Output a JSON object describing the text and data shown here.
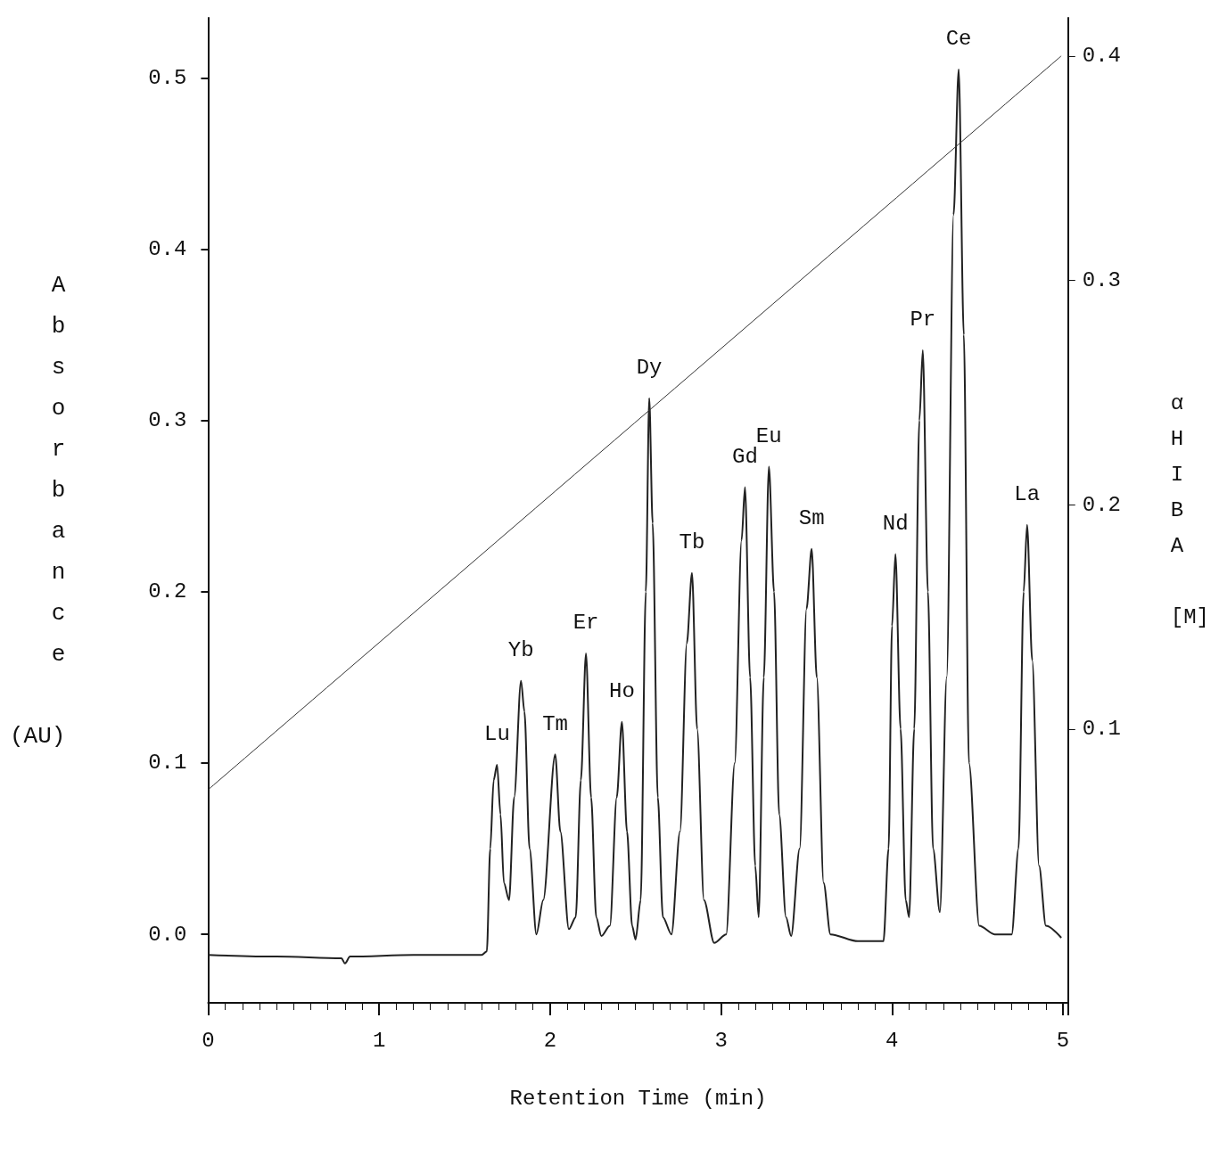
{
  "chart_data": {
    "type": "line",
    "xlabel": "Retention Time (min)",
    "ylabel": "Absorbance (AU)",
    "y2label": "αHIBA [M]",
    "xlim": [
      0,
      5.03
    ],
    "xticks": [
      0,
      1,
      2,
      3,
      4,
      5
    ],
    "ylim": [
      -0.04,
      0.535
    ],
    "yticks": [
      {
        "value": 0,
        "label": "0.0"
      },
      {
        "value": 0.1,
        "label": "0.1"
      },
      {
        "value": 0.2,
        "label": "0.2"
      },
      {
        "value": 0.3,
        "label": "0.3"
      },
      {
        "value": 0.4,
        "label": "0.4"
      },
      {
        "value": 0.5,
        "label": "0.5"
      }
    ],
    "y2lim": [
      -0.022,
      0.417
    ],
    "y2ticks": [
      0.1,
      0.2,
      0.3,
      0.4
    ],
    "grid": false,
    "marker": "none",
    "line_style": "solid",
    "series": [
      {
        "color": "#222222",
        "x": [
          0,
          0.4,
          0.78,
          0.8,
          0.83,
          1.2,
          1.6,
          1.63,
          1.65,
          1.67,
          1.69,
          1.71,
          1.73,
          1.76,
          1.79,
          1.83,
          1.85,
          1.88,
          1.92,
          1.96,
          2.03,
          2.06,
          2.11,
          2.15,
          2.18,
          2.21,
          2.24,
          2.27,
          2.3,
          2.35,
          2.39,
          2.42,
          2.45,
          2.48,
          2.5,
          2.53,
          2.56,
          2.58,
          2.6,
          2.63,
          2.66,
          2.71,
          2.76,
          2.8,
          2.83,
          2.86,
          2.9,
          2.96,
          3.03,
          3.08,
          3.12,
          3.14,
          3.17,
          3.2,
          3.22,
          3.25,
          3.28,
          3.31,
          3.34,
          3.38,
          3.41,
          3.46,
          3.5,
          3.53,
          3.56,
          3.6,
          3.64,
          3.8,
          3.95,
          3.98,
          4.0,
          4.02,
          4.05,
          4.08,
          4.1,
          4.13,
          4.16,
          4.18,
          4.21,
          4.24,
          4.28,
          4.32,
          4.36,
          4.39,
          4.42,
          4.45,
          4.51,
          4.6,
          4.7,
          4.74,
          4.77,
          4.79,
          4.82,
          4.86,
          4.9,
          4.99
        ],
        "values": [
          -0.012,
          -0.013,
          -0.014,
          -0.017,
          -0.013,
          -0.012,
          -0.012,
          -0.01,
          0.05,
          0.09,
          0.099,
          0.07,
          0.03,
          0.02,
          0.08,
          0.148,
          0.13,
          0.05,
          0.0,
          0.02,
          0.105,
          0.06,
          0.003,
          0.01,
          0.09,
          0.164,
          0.08,
          0.01,
          -0.001,
          0.005,
          0.08,
          0.124,
          0.06,
          0.005,
          -0.003,
          0.02,
          0.2,
          0.313,
          0.24,
          0.08,
          0.01,
          0.0,
          0.06,
          0.17,
          0.211,
          0.12,
          0.02,
          -0.005,
          0.0,
          0.1,
          0.23,
          0.261,
          0.15,
          0.04,
          0.01,
          0.15,
          0.273,
          0.2,
          0.07,
          0.01,
          -0.001,
          0.05,
          0.19,
          0.225,
          0.15,
          0.03,
          0.0,
          -0.004,
          -0.004,
          0.05,
          0.18,
          0.222,
          0.12,
          0.02,
          0.01,
          0.12,
          0.3,
          0.341,
          0.2,
          0.05,
          0.013,
          0.15,
          0.42,
          0.505,
          0.35,
          0.1,
          0.005,
          0.0,
          0.0,
          0.05,
          0.2,
          0.239,
          0.16,
          0.04,
          0.005,
          -0.002
        ]
      },
      {
        "color": "#333333",
        "axis": "y2",
        "x": [
          0,
          4.99
        ],
        "values": [
          0.073,
          0.4
        ]
      }
    ],
    "annotations": [
      {
        "text": "Lu",
        "x": 1.69,
        "y": 0.099
      },
      {
        "text": "Yb",
        "x": 1.83,
        "y": 0.148
      },
      {
        "text": "Tm",
        "x": 2.03,
        "y": 0.105
      },
      {
        "text": "Er",
        "x": 2.21,
        "y": 0.164
      },
      {
        "text": "Ho",
        "x": 2.42,
        "y": 0.124
      },
      {
        "text": "Dy",
        "x": 2.58,
        "y": 0.313
      },
      {
        "text": "Tb",
        "x": 2.83,
        "y": 0.211
      },
      {
        "text": "Gd",
        "x": 3.14,
        "y": 0.261
      },
      {
        "text": "Eu",
        "x": 3.28,
        "y": 0.273
      },
      {
        "text": "Sm",
        "x": 3.53,
        "y": 0.225
      },
      {
        "text": "Nd",
        "x": 4.02,
        "y": 0.222
      },
      {
        "text": "Pr",
        "x": 4.18,
        "y": 0.341
      },
      {
        "text": "Ce",
        "x": 4.39,
        "y": 0.505
      },
      {
        "text": "La",
        "x": 4.79,
        "y": 0.239
      }
    ]
  }
}
